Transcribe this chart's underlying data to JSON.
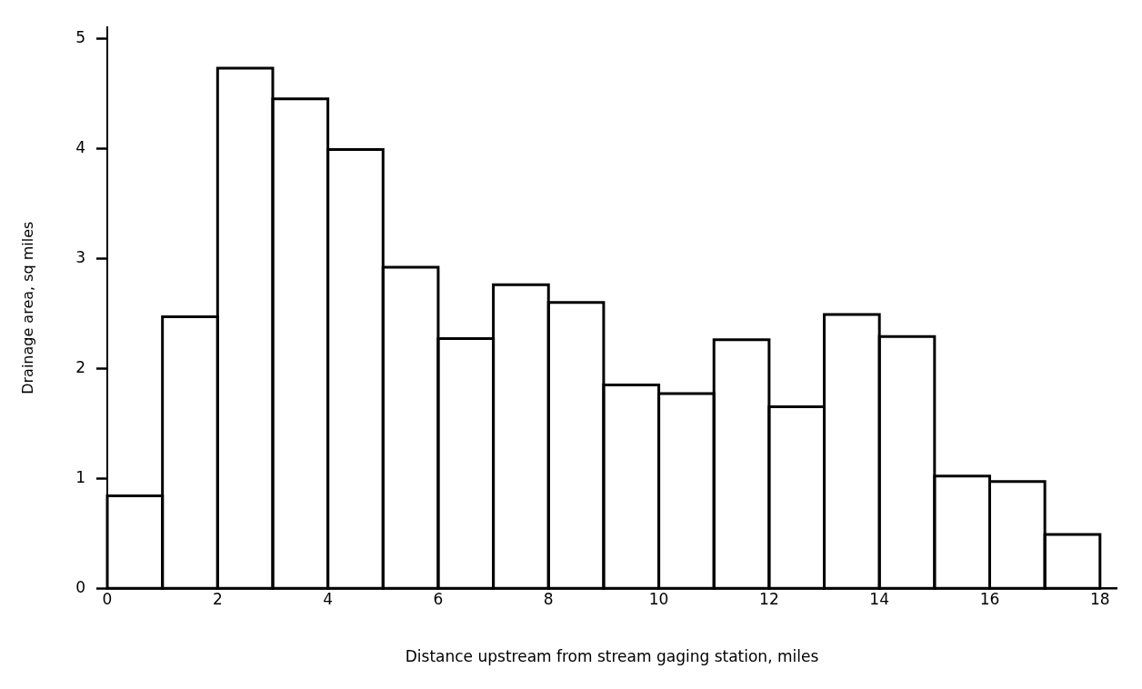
{
  "chart_data": {
    "type": "histogram",
    "xlabel": "Distance upstream from stream gaging station, miles",
    "ylabel": "Drainage area, sq miles",
    "bins": [
      0,
      1,
      2,
      3,
      4,
      5,
      6,
      7,
      8,
      9,
      10,
      11,
      12,
      13,
      14,
      15,
      16,
      17,
      18
    ],
    "values": [
      0.84,
      2.47,
      4.73,
      4.45,
      3.99,
      2.92,
      2.27,
      2.76,
      2.6,
      1.85,
      1.77,
      2.26,
      1.65,
      2.49,
      2.29,
      1.02,
      0.97,
      0.49
    ],
    "color": "#000000",
    "xlim": [
      0,
      18.3
    ],
    "ylim": [
      0,
      5.1
    ],
    "xticks": [
      0,
      2,
      4,
      6,
      8,
      10,
      12,
      14,
      16,
      18
    ],
    "yticks": [
      0,
      1,
      2,
      3,
      4,
      5
    ],
    "grid": false,
    "legend": false
  }
}
